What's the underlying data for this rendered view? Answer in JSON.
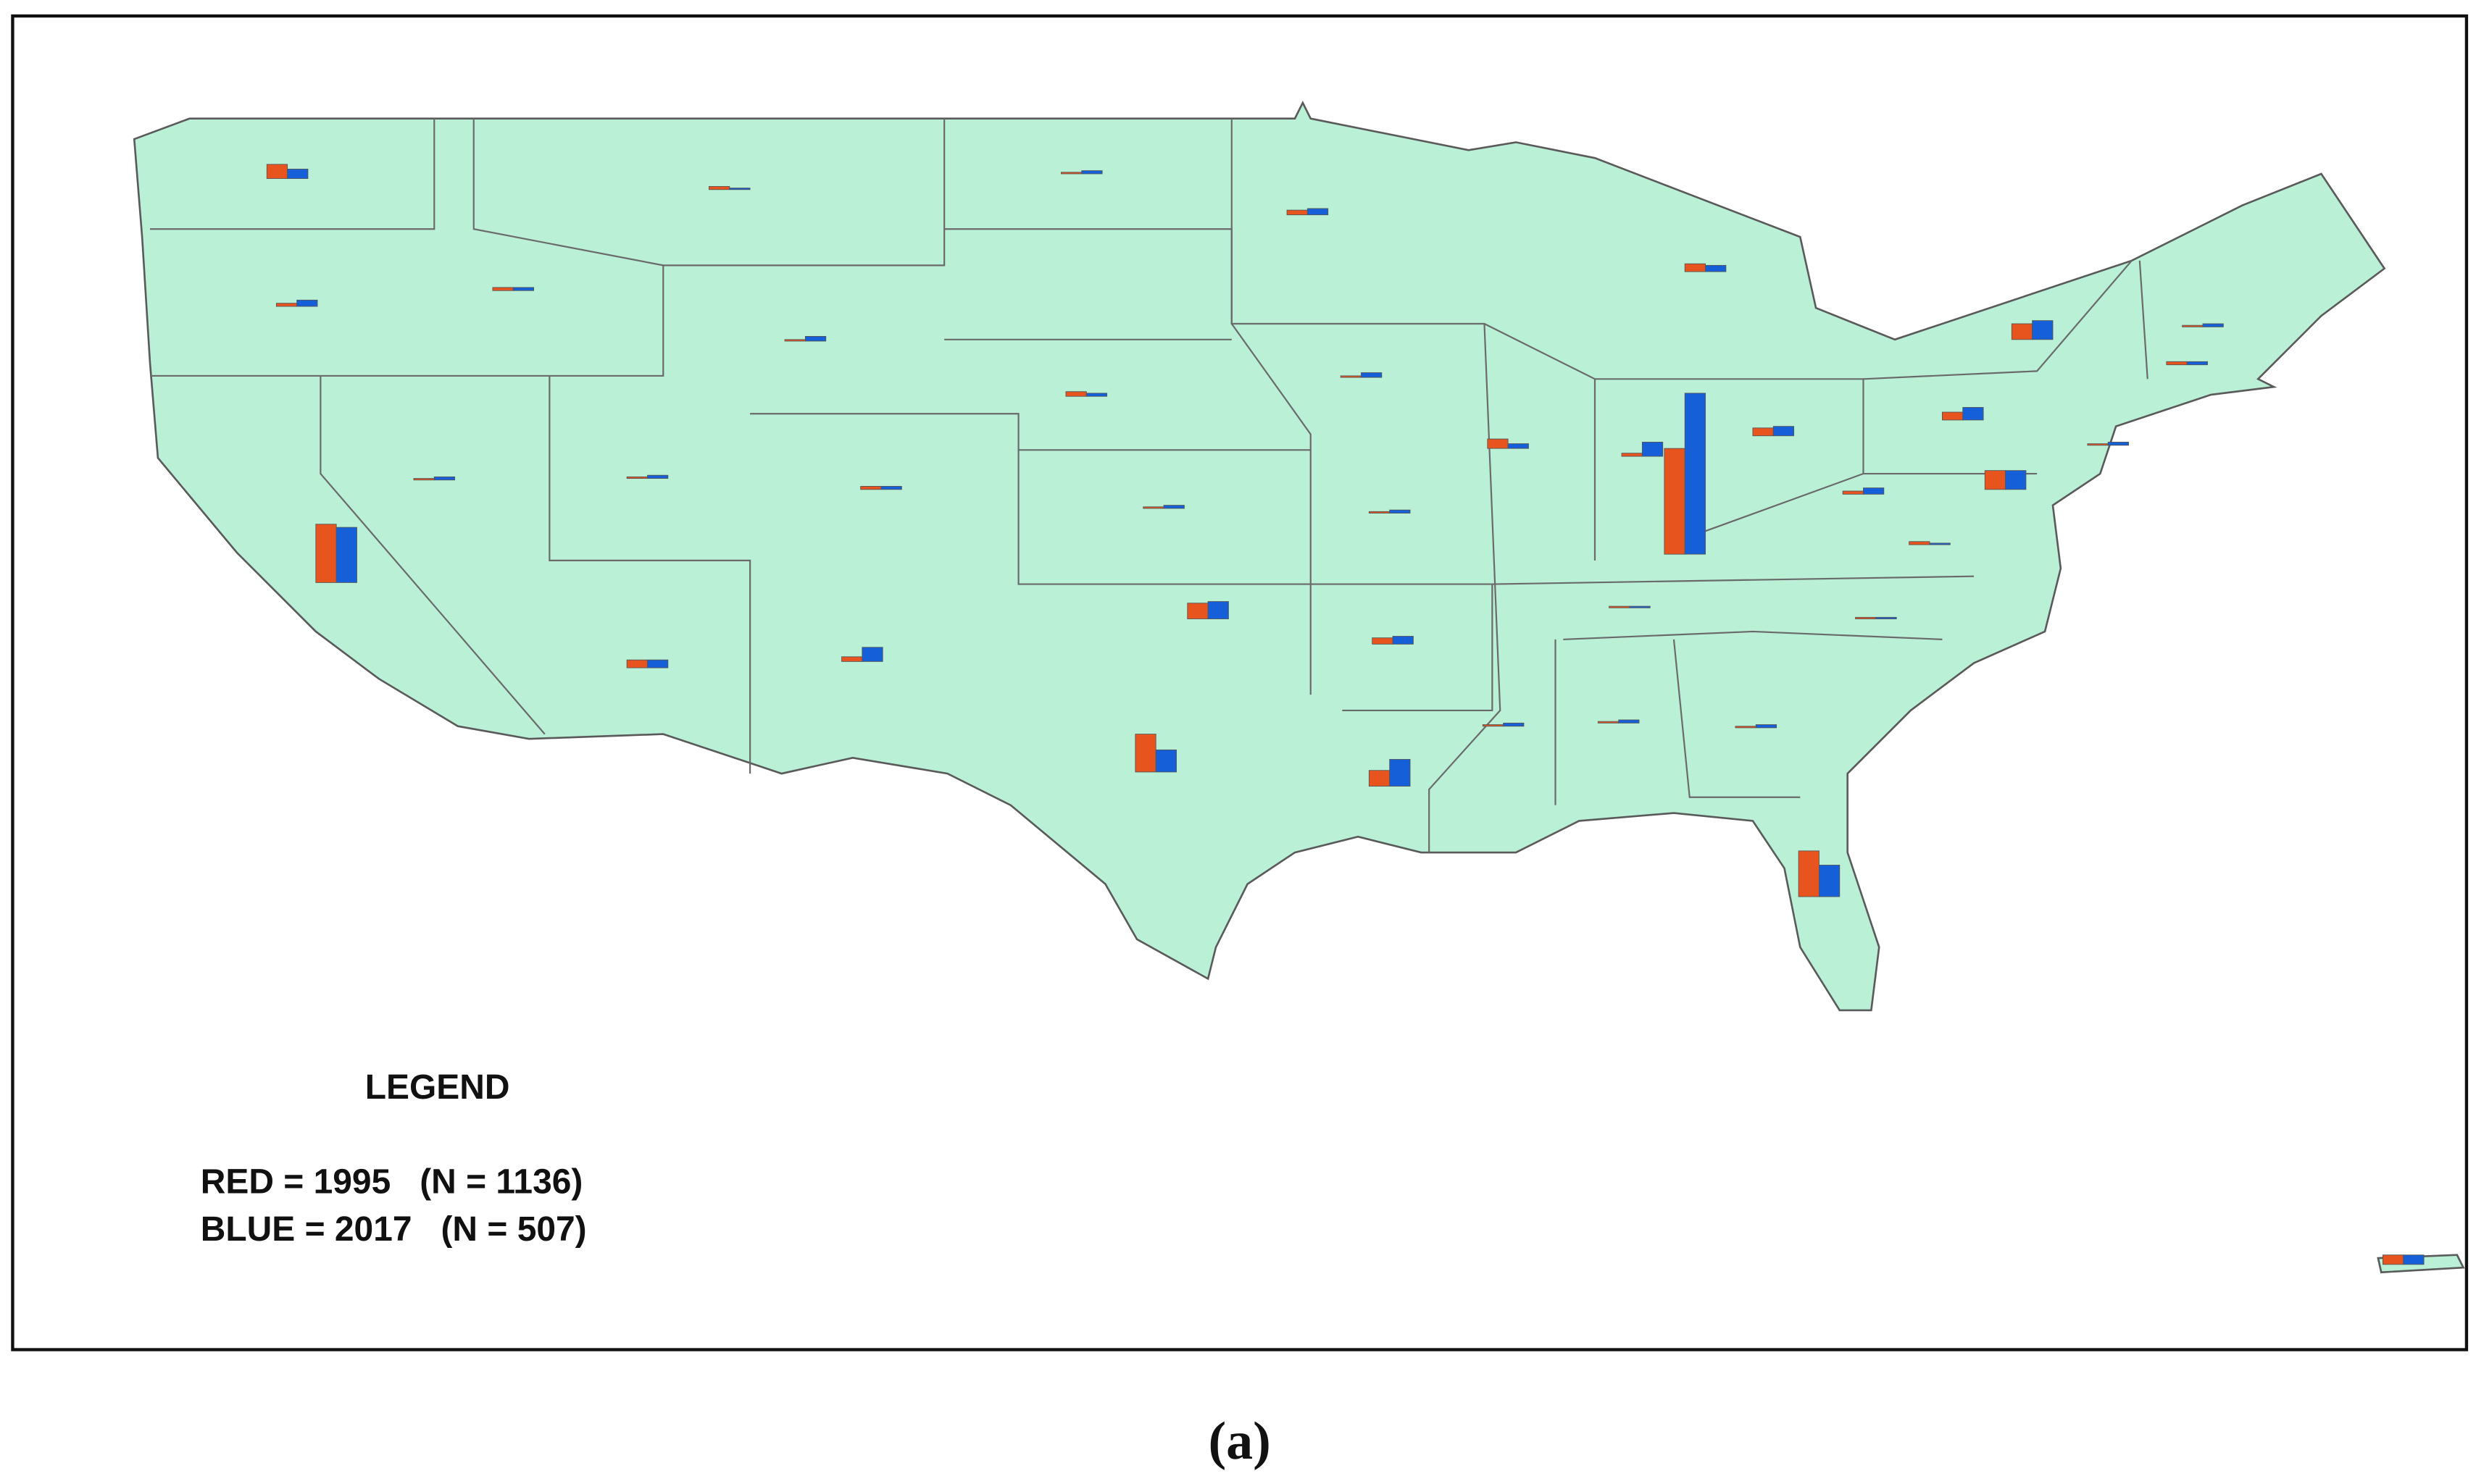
{
  "chart_data": {
    "type": "bar",
    "legend_title": "LEGEND",
    "series": [
      {
        "name": "RED = 1995   (N = 1136)",
        "color": "#e8541e",
        "values": [
          9,
          2,
          2,
          2,
          1,
          3,
          1,
          3,
          1,
          5,
          1,
          1,
          2,
          1,
          1,
          6,
          67,
          2,
          5,
          5,
          10,
          1,
          2,
          1,
          12,
          2,
          2,
          1,
          1,
          37,
          5,
          3,
          24,
          10,
          4,
          10,
          1,
          1,
          1,
          29,
          6
        ]
      },
      {
        "name": "BLUE = 2017   (N = 507)",
        "color": "#1560d8",
        "values": [
          6,
          4,
          2,
          1,
          2,
          4,
          3,
          2,
          3,
          4,
          2,
          2,
          2,
          2,
          2,
          3,
          102,
          9,
          6,
          8,
          12,
          2,
          2,
          2,
          12,
          4,
          1,
          1,
          1,
          35,
          5,
          9,
          14,
          11,
          5,
          17,
          2,
          2,
          2,
          20,
          6
        ]
      }
    ]
  },
  "caption": "(a)"
}
